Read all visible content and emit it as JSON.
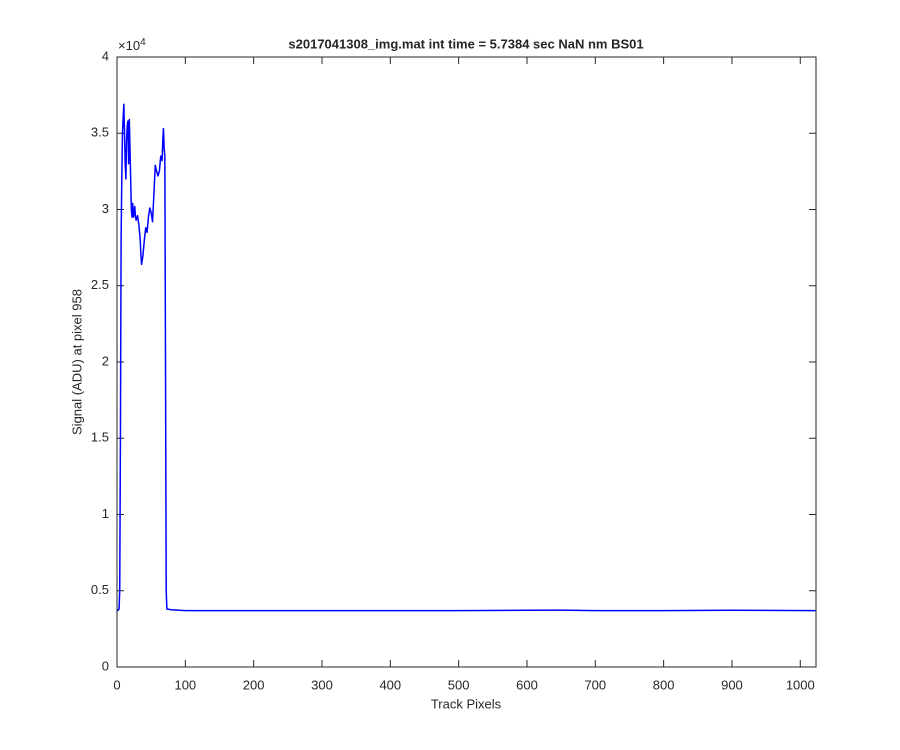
{
  "chart_data": {
    "type": "line",
    "title": "s2017041308_img.mat int time = 5.7384 sec  NaN nm BS01",
    "x_label": "Track Pixels",
    "y_label": "Signal (ADU) at pixel 958",
    "y_exponent_base": "×10",
    "y_exponent": "4",
    "color": "#0000ff",
    "x": [
      0,
      1,
      3,
      4,
      5,
      6,
      7,
      8,
      9,
      10,
      11,
      12,
      13,
      14,
      15,
      16,
      17,
      18,
      19,
      20,
      21,
      22,
      23,
      24,
      25,
      26,
      27,
      28,
      30,
      32,
      34,
      35,
      36,
      38,
      40,
      42,
      44,
      46,
      48,
      50,
      52,
      54,
      56,
      58,
      60,
      62,
      64,
      66,
      67,
      68,
      69,
      70,
      71,
      72,
      73,
      80,
      100,
      200,
      300,
      400,
      500,
      600,
      650,
      700,
      800,
      900,
      1023
    ],
    "values": [
      0.38,
      0.37,
      0.38,
      0.5,
      1.5,
      2.8,
      3.2,
      3.5,
      3.6,
      3.69,
      3.5,
      3.3,
      3.2,
      3.45,
      3.55,
      3.58,
      3.3,
      3.59,
      3.4,
      3.2,
      3.0,
      2.95,
      3.04,
      2.95,
      2.97,
      3.02,
      2.95,
      2.93,
      2.96,
      2.9,
      2.8,
      2.7,
      2.64,
      2.7,
      2.8,
      2.88,
      2.85,
      2.95,
      3.01,
      2.98,
      2.92,
      3.1,
      3.29,
      3.25,
      3.22,
      3.25,
      3.35,
      3.32,
      3.45,
      3.53,
      3.4,
      3.35,
      2.0,
      0.5,
      0.38,
      0.375,
      0.37,
      0.37,
      0.37,
      0.37,
      0.37,
      0.372,
      0.373,
      0.37,
      0.37,
      0.372,
      0.37
    ],
    "xlim": [
      0,
      1023
    ],
    "ylim": [
      0,
      4
    ],
    "xticks": [
      0,
      100,
      200,
      300,
      400,
      500,
      600,
      700,
      800,
      900,
      1000
    ],
    "yticks": [
      0,
      0.5,
      1,
      1.5,
      2,
      2.5,
      3,
      3.5,
      4
    ],
    "grid": false
  }
}
